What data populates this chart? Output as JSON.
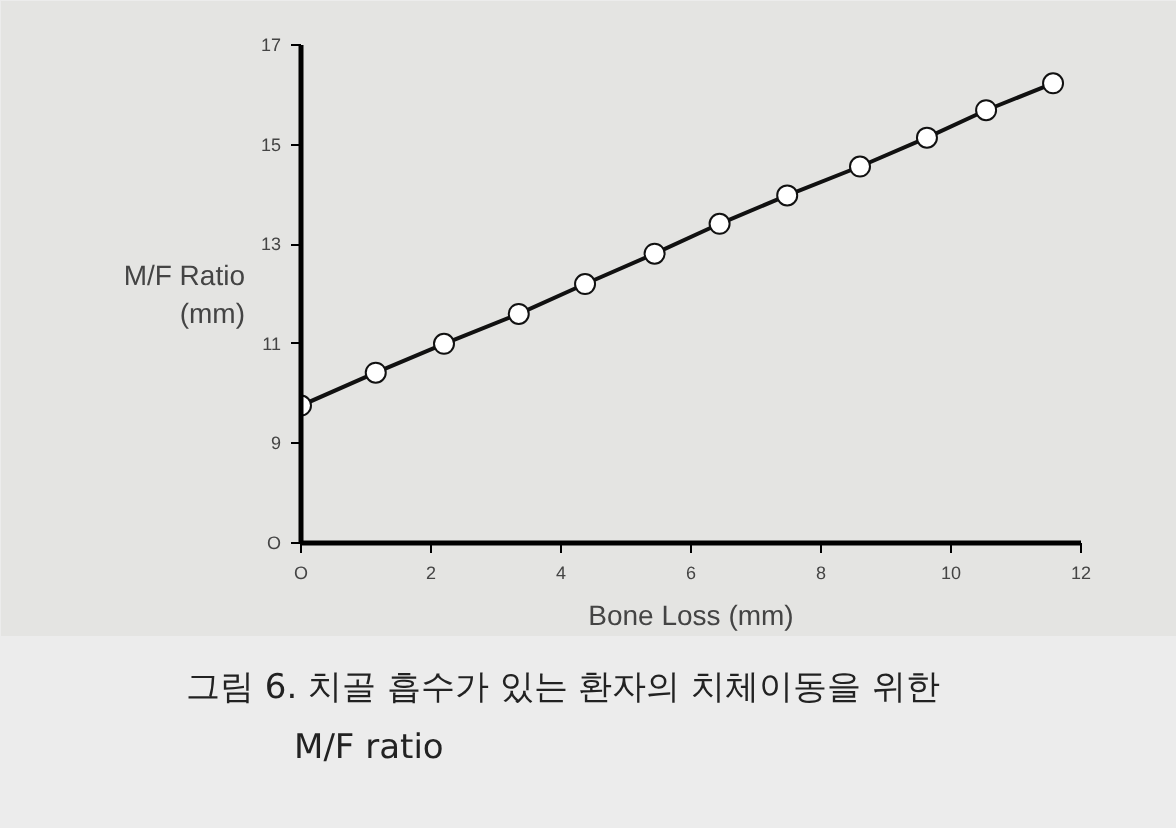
{
  "chart_data": {
    "type": "line",
    "xlabel": "Bone Loss (mm)",
    "ylabel": "M/F Ratio\n(mm)",
    "x": [
      0,
      1.15,
      2.2,
      3.35,
      4.37,
      5.44,
      6.44,
      7.48,
      8.6,
      9.63,
      10.54,
      11.57
    ],
    "series": [
      {
        "color": "#111111",
        "values": [
          9.76,
          10.42,
          11.0,
          11.6,
          12.2,
          12.81,
          13.41,
          13.98,
          14.56,
          15.14,
          15.69,
          16.23
        ]
      }
    ],
    "xlim": [
      0,
      12
    ],
    "xticks": [
      {
        "value": 0,
        "label": "O"
      },
      2,
      4,
      6,
      8,
      10,
      12
    ],
    "ylim": [
      7,
      17
    ],
    "yticks": [
      {
        "value": 7,
        "label": "O"
      },
      9,
      11,
      13,
      15,
      17
    ],
    "marker": "circle",
    "line_style": "solid",
    "annotations": [
      "그림 6. 치골 흡수가 있는 환자의 치체이동을 위한\nM/F ratio"
    ]
  }
}
